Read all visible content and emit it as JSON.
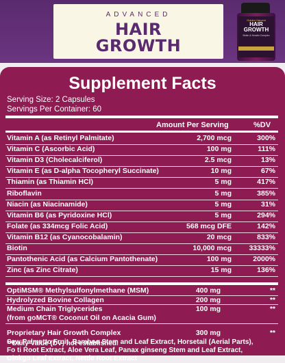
{
  "brand": {
    "tagline": "ADVANCED",
    "title_line1": "HAIR",
    "title_line2": "GROWTH"
  },
  "bottle": {
    "brand": "Golden Harvest",
    "title_line1": "HAIR",
    "title_line2": "GROWTH",
    "subtitle": "Biotin & Keratin Complex"
  },
  "facts": {
    "title": "Supplement Facts",
    "serving_size": "Serving Size: 2 Capsules",
    "servings_per_container": "Servings Per Container: 60",
    "header_amount": "Amount Per Serving",
    "header_dv": "%DV",
    "vitamins": [
      {
        "name": "Vitamin A (as Retinyl Palmitate)",
        "amount": "2,700 mcg",
        "dv": "300%"
      },
      {
        "name": "Vitamin C (Ascorbic Acid)",
        "amount": "100 mg",
        "dv": "111%"
      },
      {
        "name": "Vitamin D3 (Cholecalciferol)",
        "amount": "2.5 mcg",
        "dv": "13%"
      },
      {
        "name": "Vitamin E (as D-alpha Tocopheryl Succinate)",
        "amount": "10 mg",
        "dv": "67%"
      },
      {
        "name": "Thiamin (as Thiamin HCl)",
        "amount": "5 mg",
        "dv": "417%"
      },
      {
        "name": "Riboflavin",
        "amount": "5 mg",
        "dv": "385%"
      },
      {
        "name": "Niacin (as Niacinamide)",
        "amount": "5 mg",
        "dv": "31%"
      },
      {
        "name": "Vitamin B6 (as Pyridoxine HCl)",
        "amount": "5 mg",
        "dv": "294%"
      },
      {
        "name": "Folate (as 334mcg Folic Acid)",
        "amount": "568 mcg DFE",
        "dv": "142%"
      },
      {
        "name": "Vitamin B12 (as Cyanocobalamin)",
        "amount": "20 mcg",
        "dv": "833%"
      },
      {
        "name": "Biotin",
        "amount": "10,000 mcg",
        "dv": "33333%"
      },
      {
        "name": "Pantothenic Acid (as Calcium Pantothenate)",
        "amount": "100 mg",
        "dv": "2000%"
      },
      {
        "name": "Zinc (as Zinc Citrate)",
        "amount": "15 mg",
        "dv": "136%"
      }
    ],
    "other": [
      {
        "name": "OptiMSM® Methylsulfonylmethane (MSM)",
        "amount": "400 mg",
        "dv": "**"
      },
      {
        "name": "Hydrolyzed Bovine Collagen",
        "amount": "200 mg",
        "dv": "**"
      },
      {
        "name": "Medium Chain Triglycerides",
        "amount": "100 mg",
        "dv": "**"
      }
    ],
    "mct_source": "(from goMCT® Coconut Oil on Acacia Gum)",
    "complex_name": "Proprietary Hair Growth Complex",
    "complex_amount": "300 mg",
    "complex_dv": "**",
    "complex_ingredients": "Saw Palmetto Fruit, Bamboo Stem and Leaf Extract, Horsetail (Aerial Parts), Fo ti Root Extract, Aloe Vera Leaf, Panax ginseng Stem and Leaf Extract, Ginkgo Leaf Extract, Nettle Root Extract",
    "footnote": "**Daily Value (DV) not established."
  }
}
